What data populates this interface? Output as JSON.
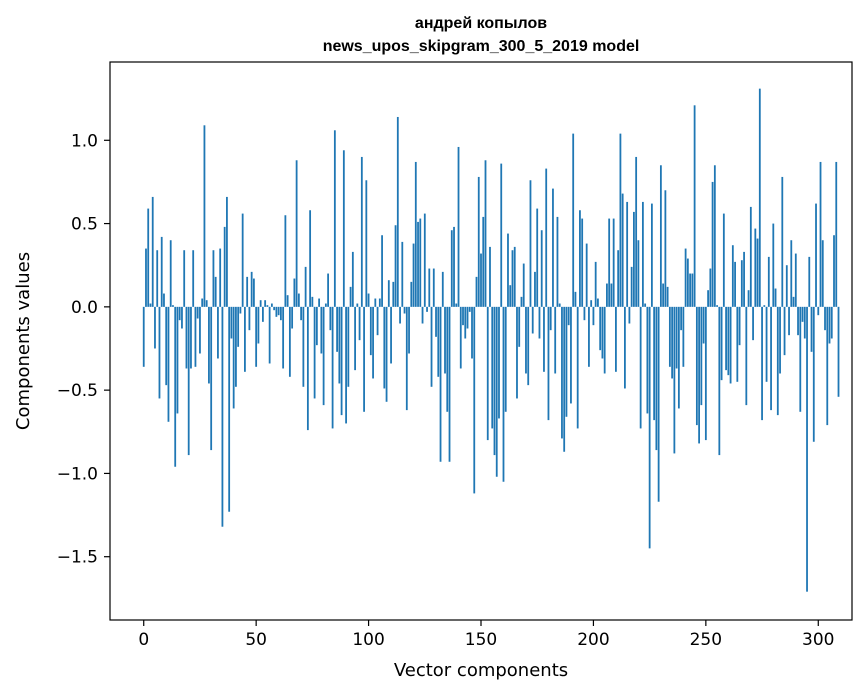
{
  "chart_data": {
    "type": "bar",
    "title": "андрей копылов",
    "subtitle": "news_upos_skipgram_300_5_2019 model",
    "xlabel": "Vector components",
    "ylabel": "Components values",
    "xlim": [
      -15,
      315
    ],
    "ylim": [
      -1.88,
      1.47
    ],
    "xticks": [
      0,
      50,
      100,
      150,
      200,
      250,
      300
    ],
    "yticks": [
      -1.5,
      -1.0,
      -0.5,
      0.0,
      0.5,
      1.0
    ],
    "ytick_labels": [
      "−1.5",
      "−1.0",
      "−0.5",
      "0.0",
      "0.5",
      "1.0"
    ],
    "bar_color": "#1f77b4",
    "grid": false,
    "legend": "none",
    "values": [
      -0.36,
      0.35,
      0.59,
      0.02,
      0.66,
      -0.25,
      0.34,
      -0.55,
      0.42,
      0.08,
      -0.47,
      -0.69,
      0.4,
      0.01,
      -0.96,
      -0.64,
      -0.08,
      -0.13,
      0.34,
      -0.37,
      -0.89,
      -0.37,
      0.34,
      -0.36,
      -0.07,
      -0.28,
      0.05,
      1.09,
      0.04,
      -0.46,
      -0.86,
      0.34,
      0.18,
      -0.31,
      0.35,
      -1.32,
      0.48,
      0.66,
      -1.23,
      -0.19,
      -0.61,
      -0.48,
      -0.24,
      -0.04,
      0.56,
      -0.39,
      0.18,
      -0.14,
      0.21,
      0.17,
      -0.36,
      -0.22,
      0.04,
      -0.09,
      0.04,
      0.01,
      -0.34,
      0.02,
      -0.02,
      -0.06,
      -0.05,
      -0.08,
      -0.37,
      0.55,
      0.07,
      -0.42,
      -0.13,
      0.17,
      0.88,
      0.08,
      -0.08,
      -0.48,
      0.24,
      -0.74,
      0.58,
      0.06,
      -0.55,
      -0.23,
      0.05,
      -0.28,
      -0.59,
      0.02,
      0.2,
      -0.14,
      -0.73,
      1.06,
      -0.27,
      -0.46,
      -0.65,
      0.94,
      -0.7,
      -0.48,
      0.12,
      0.33,
      -0.38,
      0.02,
      -0.2,
      0.9,
      -0.63,
      0.76,
      0.08,
      -0.29,
      -0.43,
      0.05,
      -0.17,
      0.05,
      0.43,
      -0.49,
      -0.57,
      0.16,
      -0.34,
      0.15,
      0.49,
      1.14,
      -0.1,
      0.39,
      -0.04,
      -0.62,
      -0.28,
      0.15,
      0.38,
      0.87,
      0.51,
      0.53,
      -0.1,
      0.56,
      -0.03,
      0.23,
      -0.48,
      0.23,
      -0.18,
      -0.42,
      -0.93,
      0.21,
      -0.4,
      -0.63,
      -0.93,
      0.46,
      0.48,
      0.02,
      0.96,
      -0.37,
      -0.11,
      -0.19,
      -0.13,
      -0.03,
      -0.31,
      -1.12,
      0.18,
      0.78,
      0.32,
      0.54,
      0.88,
      -0.8,
      0.36,
      -0.73,
      -0.89,
      -1.02,
      -0.67,
      0.86,
      -1.05,
      -0.63,
      0.44,
      0.13,
      0.34,
      0.36,
      -0.55,
      -0.24,
      0.06,
      0.26,
      -0.4,
      -0.47,
      0.76,
      -0.16,
      0.21,
      0.59,
      -0.19,
      0.46,
      -0.39,
      0.83,
      -0.68,
      -0.14,
      0.71,
      -0.4,
      0.54,
      0.02,
      -0.79,
      -0.87,
      -0.66,
      -0.11,
      -0.58,
      1.04,
      0.09,
      -0.73,
      0.58,
      0.53,
      -0.08,
      0.38,
      -0.36,
      0.04,
      -0.11,
      0.27,
      0.05,
      -0.26,
      -0.31,
      -0.4,
      0.14,
      0.53,
      0.14,
      0.53,
      -0.39,
      0.34,
      1.04,
      0.68,
      -0.49,
      0.63,
      -0.1,
      0.24,
      0.57,
      0.9,
      0.4,
      -0.73,
      0.63,
      0.02,
      -0.64,
      -1.45,
      0.62,
      -0.68,
      -0.86,
      -1.17,
      0.85,
      0.14,
      0.7,
      0.12,
      -0.36,
      -0.43,
      -0.88,
      -0.37,
      -0.61,
      -0.14,
      -0.36,
      0.35,
      0.29,
      0.2,
      0.2,
      1.21,
      -0.71,
      -0.82,
      -0.59,
      -0.22,
      -0.8,
      0.1,
      0.23,
      0.75,
      0.85,
      0.01,
      -0.89,
      -0.44,
      0.56,
      -0.38,
      -0.41,
      -0.46,
      0.37,
      0.27,
      -0.45,
      -0.23,
      0.28,
      0.33,
      -0.59,
      0.1,
      0.6,
      -0.2,
      0.47,
      0.41,
      1.31,
      -0.68,
      0.01,
      -0.45,
      0.3,
      -0.62,
      0.5,
      0.11,
      -0.65,
      -0.4,
      0.78,
      -0.29,
      0.25,
      -0.17,
      0.4,
      0.06,
      0.32,
      -0.17,
      -0.63,
      -0.09,
      -0.19,
      -1.71,
      0.3,
      -0.27,
      -0.81,
      0.62,
      -0.05,
      0.87,
      0.4,
      -0.14,
      -0.71,
      -0.22,
      -0.19,
      0.43,
      0.87,
      -0.54
    ]
  }
}
